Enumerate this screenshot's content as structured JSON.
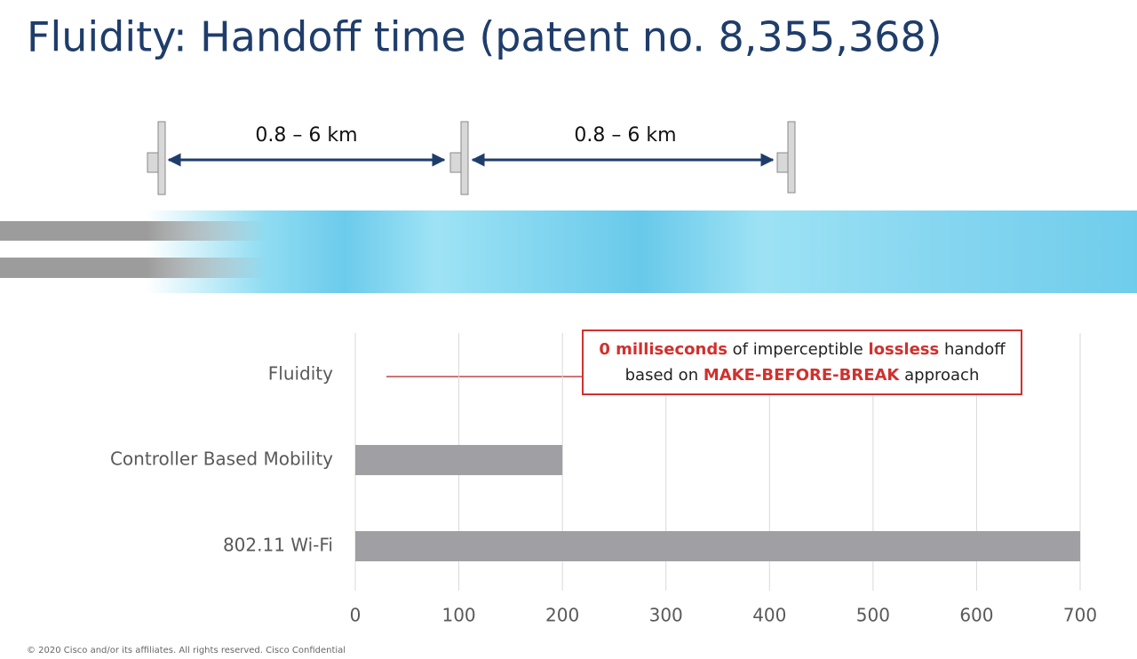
{
  "header": {
    "title": "Fluidity: Handoff time (patent no. 8,355,368)"
  },
  "diagram": {
    "distance_labels": [
      "0.8 – 6 km",
      "0.8 – 6 km"
    ]
  },
  "chart_data": {
    "type": "bar",
    "orientation": "horizontal",
    "categories": [
      "Fluidity",
      "Controller Based Mobility",
      "802.11 Wi-Fi"
    ],
    "values": [
      0,
      200,
      700
    ],
    "color": "#a09fa3",
    "xlim": [
      0,
      700
    ],
    "xticks": [
      0,
      100,
      200,
      300,
      400,
      500,
      600,
      700
    ],
    "grid": true,
    "annotation": [
      [
        {
          "text": "0 milliseconds",
          "highlight": true
        },
        {
          "text": " of imperceptible ",
          "highlight": false
        },
        {
          "text": "lossless",
          "highlight": true
        },
        {
          "text": " handoff",
          "highlight": false
        }
      ],
      [
        {
          "text": "based on ",
          "highlight": false
        },
        {
          "text": "MAKE-BEFORE-BREAK",
          "highlight": true
        },
        {
          "text": " approach",
          "highlight": false
        }
      ]
    ],
    "annotation_color": "#d0312d"
  },
  "footer": {
    "text": "© 2020  Cisco and/or its affiliates. All rights reserved.   Cisco Confidential"
  }
}
